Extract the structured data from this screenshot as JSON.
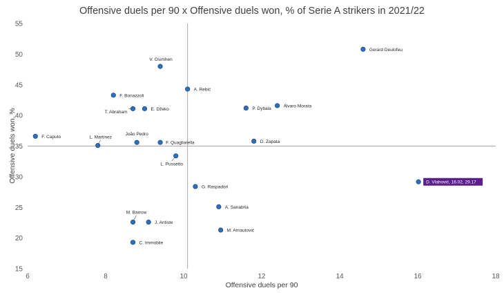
{
  "chart_data": {
    "type": "scatter",
    "title": "Offensive duels per 90 x Offensive duels won, % of Serie A strikers in 2021/22",
    "xlabel": "Offensive duels per 90",
    "ylabel": "Offensive duels won, %",
    "xlim": [
      6,
      18
    ],
    "ylim": [
      15,
      55
    ],
    "x_ticks": [
      "6",
      "8",
      "10",
      "12",
      "14",
      "16",
      "18"
    ],
    "y_ticks": [
      "15",
      "20",
      "25",
      "30",
      "35",
      "40",
      "45",
      "50",
      "55"
    ],
    "reference_lines": {
      "x": 10.1,
      "y": 35
    },
    "colors": {
      "point": "#2f6eba",
      "point_edge": "#1f4e8a",
      "highlight_bg": "#5b1f8c",
      "ref_line": "#a6a6a6"
    },
    "points": [
      {
        "name": "Gerard Deulofeu",
        "x": 14.6,
        "y": 50.8
      },
      {
        "name": "V. Osimhen",
        "x": 9.4,
        "y": 48.0
      },
      {
        "name": "A. Rebić",
        "x": 10.1,
        "y": 44.3
      },
      {
        "name": "F. Bonazzoli",
        "x": 8.2,
        "y": 43.3
      },
      {
        "name": "T. Abraham",
        "x": 8.7,
        "y": 41.1
      },
      {
        "name": "E. Džeko",
        "x": 9.0,
        "y": 41.1
      },
      {
        "name": "P. Dybala",
        "x": 11.6,
        "y": 41.2
      },
      {
        "name": "Álvaro Morata",
        "x": 12.4,
        "y": 41.6
      },
      {
        "name": "F. Caputo",
        "x": 6.2,
        "y": 36.6
      },
      {
        "name": "L. Martínez",
        "x": 7.8,
        "y": 35.1
      },
      {
        "name": "João Pedro",
        "x": 8.8,
        "y": 35.6
      },
      {
        "name": "F. Quagliarella",
        "x": 9.4,
        "y": 35.6
      },
      {
        "name": "D. Zapata",
        "x": 11.8,
        "y": 35.8
      },
      {
        "name": "L. Pussetto",
        "x": 9.8,
        "y": 33.4
      },
      {
        "name": "G. Raspadori",
        "x": 10.3,
        "y": 28.4
      },
      {
        "name": "A. Sanabria",
        "x": 10.9,
        "y": 25.1
      },
      {
        "name": "M. Barrow",
        "x": 8.7,
        "y": 22.6
      },
      {
        "name": "J. Antiste",
        "x": 9.1,
        "y": 22.6
      },
      {
        "name": "M. Arnautović",
        "x": 10.95,
        "y": 21.3
      },
      {
        "name": "C. Immobile",
        "x": 8.7,
        "y": 19.3
      },
      {
        "name": "D. Vlahović, 16.02, 29.17",
        "x": 16.02,
        "y": 29.17,
        "highlight": true
      }
    ]
  }
}
